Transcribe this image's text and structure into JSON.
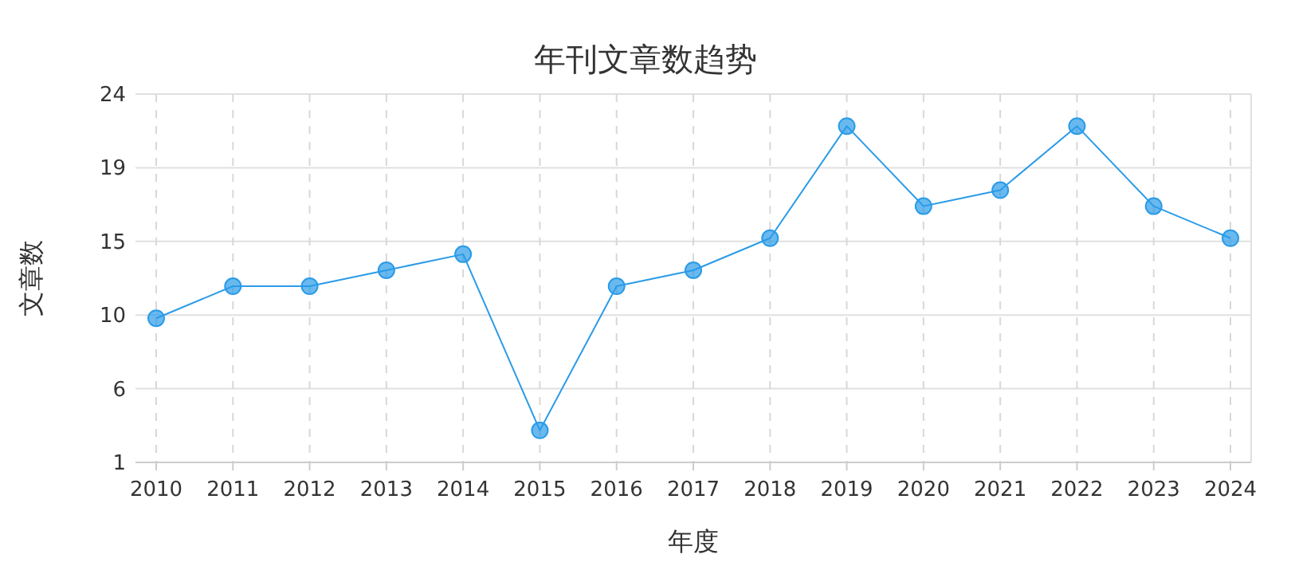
{
  "chart_data": {
    "type": "line",
    "title": "年刊文章数趋势",
    "xlabel": "年度",
    "ylabel": "文章数",
    "categories": [
      "2010",
      "2011",
      "2012",
      "2013",
      "2014",
      "2015",
      "2016",
      "2017",
      "2018",
      "2019",
      "2020",
      "2021",
      "2022",
      "2023",
      "2024"
    ],
    "series": [
      {
        "color": "#2a9be8",
        "values": [
          10,
          12,
          12,
          13,
          14,
          3,
          12,
          13,
          15,
          22,
          17,
          18,
          22,
          17,
          15
        ]
      }
    ],
    "ylim": [
      1,
      24
    ],
    "yticks": [
      1,
      {
        "value": 5.6,
        "label": "6"
      },
      {
        "value": 10.2,
        "label": "10"
      },
      {
        "value": 14.8,
        "label": "15"
      },
      {
        "value": 19.4,
        "label": "19"
      },
      24
    ],
    "grid": true,
    "marker": "circle",
    "line_style": "solid"
  }
}
